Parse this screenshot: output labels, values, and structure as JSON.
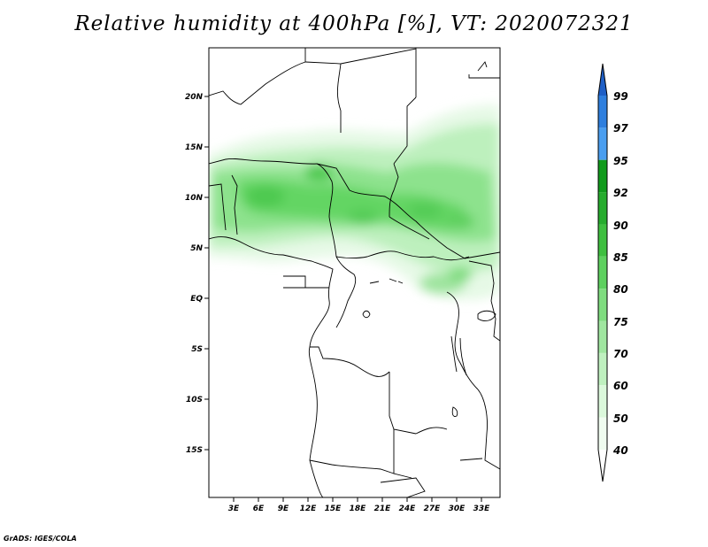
{
  "title": "Relative humidity at 400hPa [%], VT: 2020072321",
  "footer": "GrADS: IGES/COLA",
  "map": {
    "lat_labels": [
      "20N",
      "15N",
      "10N",
      "5N",
      "EQ",
      "5S",
      "10S",
      "15S"
    ],
    "lon_labels": [
      "3E",
      "6E",
      "9E",
      "12E",
      "15E",
      "18E",
      "21E",
      "24E",
      "27E",
      "30E",
      "33E"
    ]
  },
  "colorbar": {
    "levels": [
      "99",
      "97",
      "95",
      "92",
      "90",
      "85",
      "80",
      "75",
      "70",
      "60",
      "50",
      "40"
    ],
    "colors": [
      "#1f5fc6",
      "#2f7fde",
      "#4a9ef0",
      "#119b1c",
      "#27ac2e",
      "#3fbf40",
      "#5ed05f",
      "#7fdc7f",
      "#a0e6a0",
      "#bff0bf",
      "#dbf8db",
      "#f0fcf0"
    ]
  }
}
